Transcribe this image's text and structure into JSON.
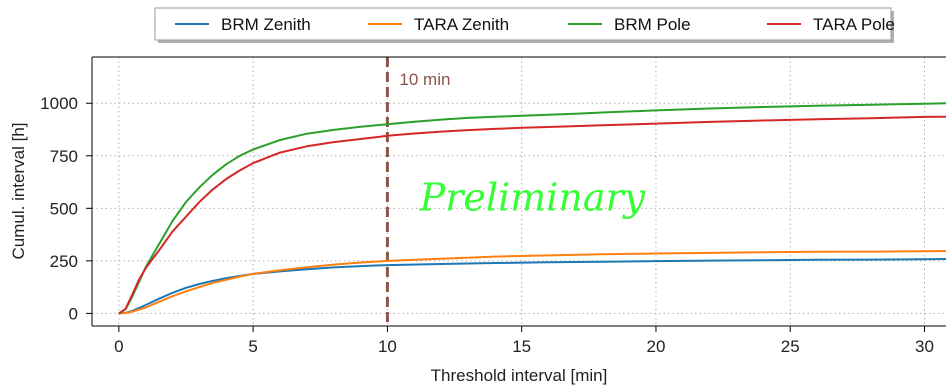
{
  "chart_data": {
    "type": "line",
    "title": "",
    "xlabel": "Threshold interval [min]",
    "ylabel": "Cumul. interval [h]",
    "xlim": [
      -1,
      30.8
    ],
    "ylim": [
      -60,
      1220
    ],
    "xticks": [
      0,
      5,
      10,
      15,
      20,
      25,
      30
    ],
    "yticks": [
      0,
      250,
      500,
      750,
      1000
    ],
    "grid": true,
    "legend_position": "top-center-outside",
    "series": [
      {
        "name": "BRM Zenith",
        "color": "#1f77b4",
        "points": [
          [
            0,
            0
          ],
          [
            0.25,
            3
          ],
          [
            0.5,
            12
          ],
          [
            1,
            40
          ],
          [
            1.5,
            70
          ],
          [
            2,
            98
          ],
          [
            2.5,
            122
          ],
          [
            3,
            140
          ],
          [
            3.5,
            155
          ],
          [
            4,
            168
          ],
          [
            4.5,
            178
          ],
          [
            5,
            188
          ],
          [
            6,
            200
          ],
          [
            7,
            210
          ],
          [
            8,
            219
          ],
          [
            9,
            225
          ],
          [
            10,
            230
          ],
          [
            12,
            235
          ],
          [
            14,
            240
          ],
          [
            16,
            243
          ],
          [
            18,
            246
          ],
          [
            20,
            249
          ],
          [
            22,
            251
          ],
          [
            24,
            253
          ],
          [
            26,
            255
          ],
          [
            28,
            256
          ],
          [
            30,
            258
          ],
          [
            30.8,
            259
          ]
        ]
      },
      {
        "name": "TARA Zenith",
        "color": "#ff7f0e",
        "points": [
          [
            0,
            0
          ],
          [
            0.25,
            2
          ],
          [
            0.5,
            8
          ],
          [
            1,
            28
          ],
          [
            1.5,
            55
          ],
          [
            2,
            82
          ],
          [
            2.5,
            105
          ],
          [
            3,
            125
          ],
          [
            3.5,
            145
          ],
          [
            4,
            160
          ],
          [
            4.5,
            175
          ],
          [
            5,
            188
          ],
          [
            6,
            205
          ],
          [
            7,
            220
          ],
          [
            8,
            232
          ],
          [
            9,
            242
          ],
          [
            10,
            250
          ],
          [
            12,
            260
          ],
          [
            14,
            270
          ],
          [
            16,
            276
          ],
          [
            18,
            281
          ],
          [
            20,
            285
          ],
          [
            22,
            288
          ],
          [
            24,
            291
          ],
          [
            26,
            293
          ],
          [
            28,
            294
          ],
          [
            30,
            296
          ],
          [
            30.8,
            297
          ]
        ]
      },
      {
        "name": "BRM Pole",
        "color": "#2ca02c",
        "points": [
          [
            0,
            0
          ],
          [
            0.25,
            20
          ],
          [
            0.5,
            80
          ],
          [
            0.75,
            150
          ],
          [
            1,
            220
          ],
          [
            1.5,
            330
          ],
          [
            2,
            440
          ],
          [
            2.5,
            530
          ],
          [
            3,
            600
          ],
          [
            3.5,
            660
          ],
          [
            4,
            710
          ],
          [
            4.5,
            750
          ],
          [
            5,
            780
          ],
          [
            6,
            825
          ],
          [
            7,
            855
          ],
          [
            8,
            873
          ],
          [
            9,
            888
          ],
          [
            10,
            900
          ],
          [
            11,
            912
          ],
          [
            12,
            922
          ],
          [
            13,
            930
          ],
          [
            14,
            936
          ],
          [
            15,
            940
          ],
          [
            16,
            945
          ],
          [
            17,
            950
          ],
          [
            18,
            956
          ],
          [
            20,
            966
          ],
          [
            22,
            975
          ],
          [
            24,
            982
          ],
          [
            26,
            988
          ],
          [
            28,
            993
          ],
          [
            30,
            998
          ],
          [
            30.8,
            1000
          ]
        ]
      },
      {
        "name": "TARA Pole",
        "color": "#d62728",
        "points": [
          [
            0,
            0
          ],
          [
            0.25,
            22
          ],
          [
            0.5,
            90
          ],
          [
            0.75,
            160
          ],
          [
            1,
            215
          ],
          [
            1.5,
            300
          ],
          [
            2,
            390
          ],
          [
            2.5,
            460
          ],
          [
            3,
            530
          ],
          [
            3.5,
            590
          ],
          [
            4,
            640
          ],
          [
            4.5,
            680
          ],
          [
            5,
            715
          ],
          [
            6,
            765
          ],
          [
            7,
            795
          ],
          [
            8,
            815
          ],
          [
            9,
            830
          ],
          [
            10,
            845
          ],
          [
            11,
            856
          ],
          [
            12,
            865
          ],
          [
            13,
            872
          ],
          [
            14,
            878
          ],
          [
            15,
            883
          ],
          [
            16,
            887
          ],
          [
            17,
            891
          ],
          [
            18,
            895
          ],
          [
            20,
            903
          ],
          [
            22,
            911
          ],
          [
            24,
            918
          ],
          [
            26,
            924
          ],
          [
            28,
            929
          ],
          [
            30,
            935
          ],
          [
            30.8,
            936
          ]
        ]
      }
    ],
    "annotations": {
      "vline_x": 10,
      "vline_color": "#8c564b",
      "vline_label": "10 min",
      "watermark_text": "Preliminary",
      "watermark_color": "#33ff33",
      "watermark_position": [
        11.2,
        490
      ]
    }
  }
}
